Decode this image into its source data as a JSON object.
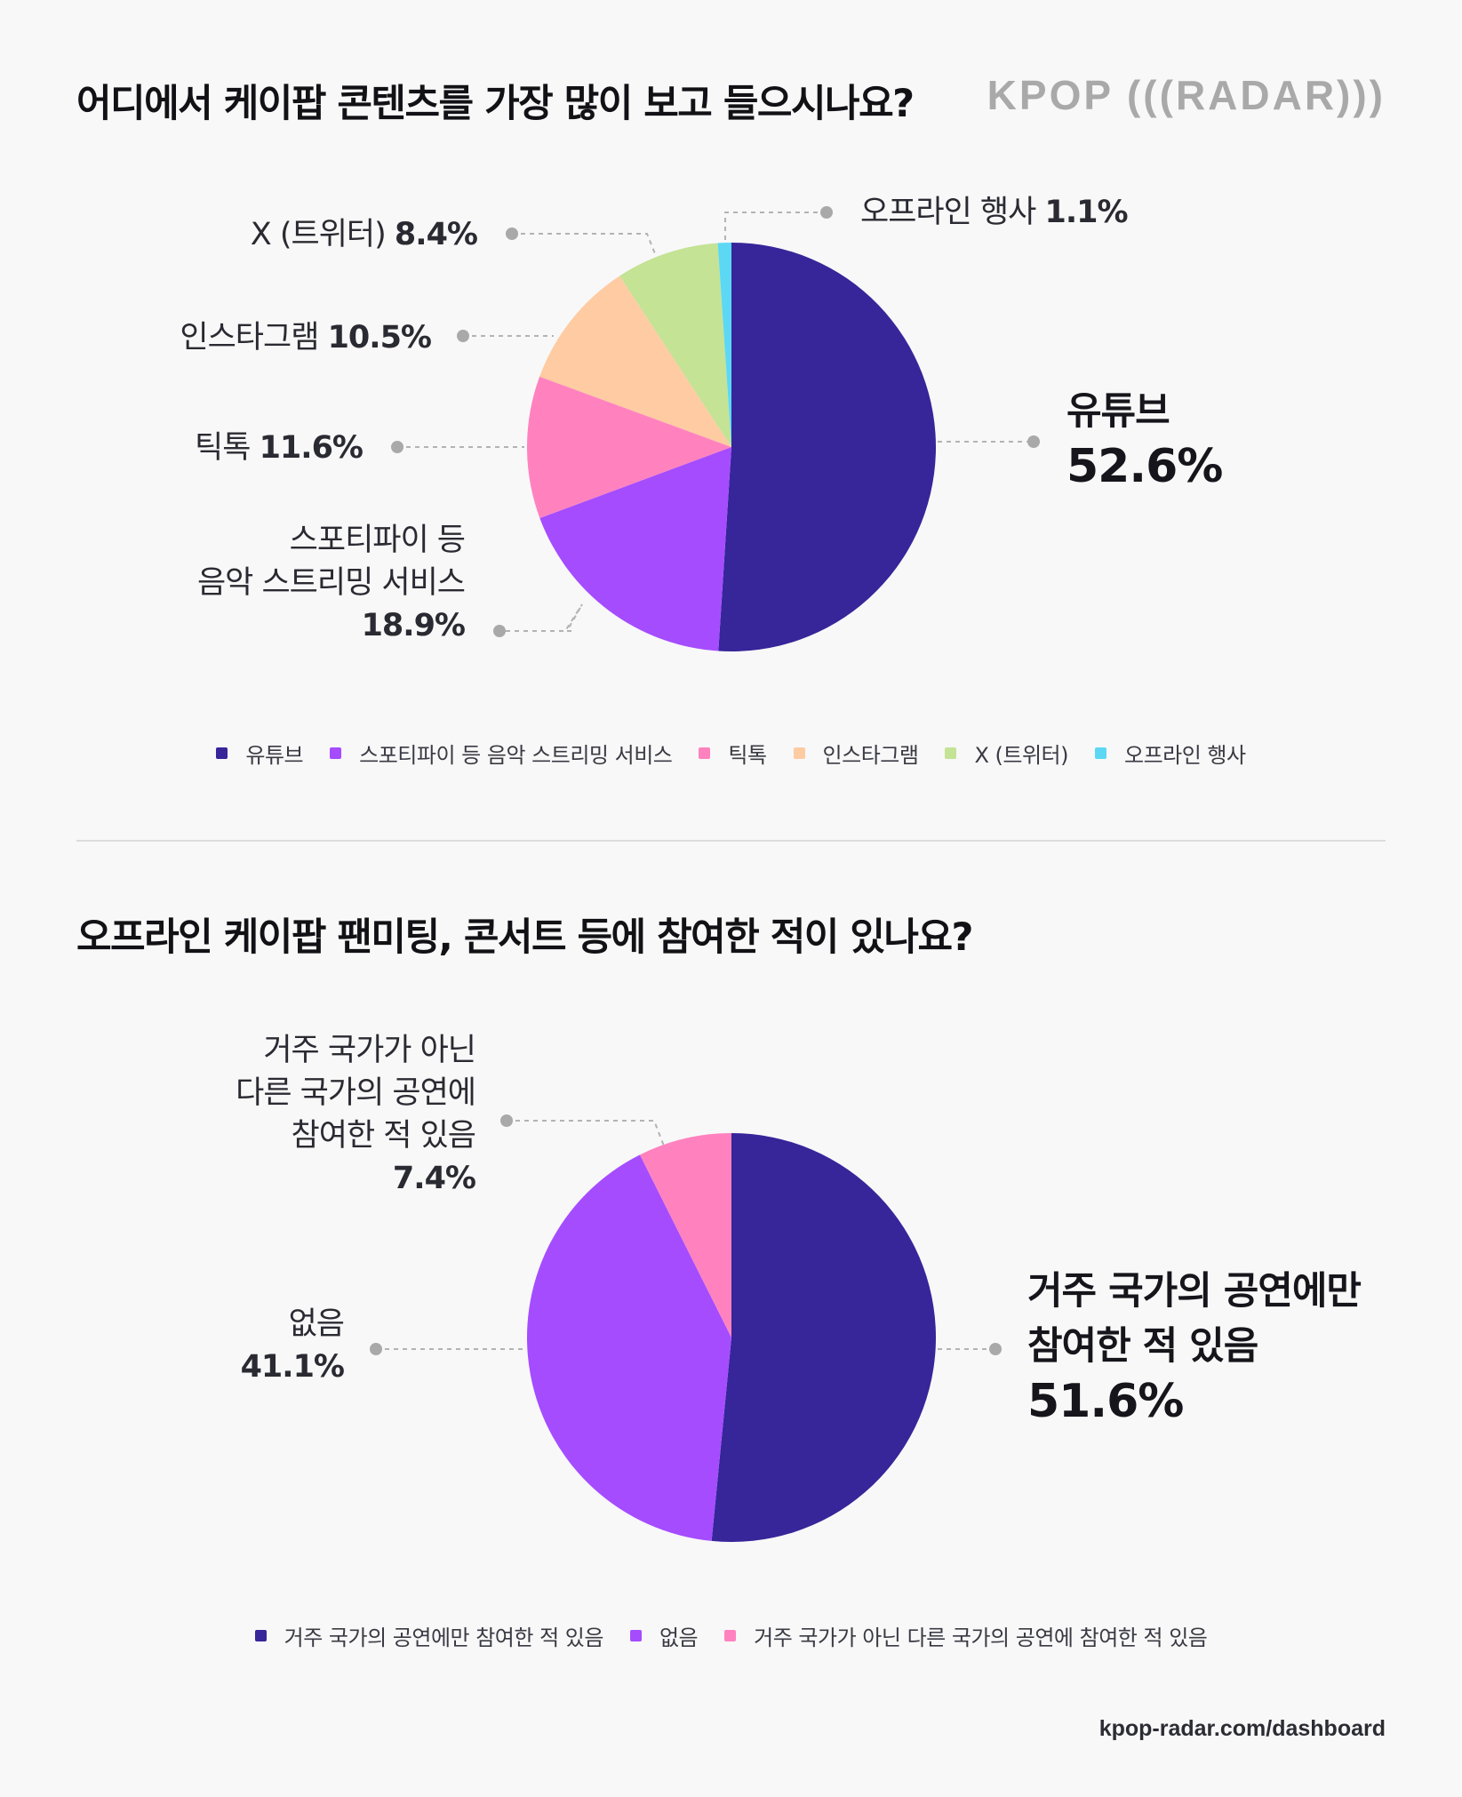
{
  "logo": "KPOP (((RADAR)))",
  "footer": "kpop-radar.com/dashboard",
  "colors": {
    "background": "#f8f8f8",
    "youtube": "#37259a",
    "streaming": "#a54cff",
    "tiktok": "#ff82bf",
    "instagram": "#ffcba2",
    "x": "#c4e395",
    "offline": "#5cd8f5"
  },
  "chart_data": [
    {
      "type": "pie",
      "title": "어디에서 케이팝 콘텐츠를 가장 많이 보고 들으시나요?",
      "slices": [
        {
          "label": "유튜브",
          "value": 52.6,
          "value_label": "52.6%",
          "color": "#37259a"
        },
        {
          "label": "스포티파이 등 음악 스트리밍 서비스",
          "value": 18.9,
          "value_label": "18.9%",
          "color": "#a54cff"
        },
        {
          "label": "틱톡",
          "value": 11.6,
          "value_label": "11.6%",
          "color": "#ff82bf"
        },
        {
          "label": "인스타그램",
          "value": 10.5,
          "value_label": "10.5%",
          "color": "#ffcba2"
        },
        {
          "label": "X (트위터)",
          "value": 8.4,
          "value_label": "8.4%",
          "color": "#c4e395"
        },
        {
          "label": "오프라인 행사",
          "value": 1.1,
          "value_label": "1.1%",
          "color": "#5cd8f5"
        }
      ],
      "callouts": {
        "youtube": {
          "line1": "유튜브",
          "pct": "52.6%"
        },
        "streaming": {
          "line1": "스포티파이 등",
          "line2": "음악 스트리밍 서비스",
          "pct": "18.9%"
        },
        "tiktok": {
          "line1": "틱톡",
          "pct": "11.6%"
        },
        "instagram": {
          "line1": "인스타그램",
          "pct": "10.5%"
        },
        "x": {
          "line1": "X (트위터)",
          "pct": "8.4%"
        },
        "offline": {
          "line1": "오프라인 행사",
          "pct": "1.1%"
        }
      },
      "legend": [
        "유튜브",
        "스포티파이 등 음악 스트리밍 서비스",
        "틱톡",
        "인스타그램",
        "X (트위터)",
        "오프라인 행사"
      ]
    },
    {
      "type": "pie",
      "title": "오프라인 케이팝 팬미팅, 콘서트 등에 참여한 적이 있나요?",
      "slices": [
        {
          "label": "거주 국가의 공연에만 참여한 적 있음",
          "value": 51.6,
          "value_label": "51.6%",
          "color": "#37259a"
        },
        {
          "label": "없음",
          "value": 41.1,
          "value_label": "41.1%",
          "color": "#a54cff"
        },
        {
          "label": "거주 국가가 아닌 다른 국가의 공연에 참여한 적 있음",
          "value": 7.4,
          "value_label": "7.4%",
          "color": "#ff82bf"
        }
      ],
      "callouts": {
        "domestic": {
          "line1": "거주 국가의 공연에만",
          "line2": "참여한 적 있음",
          "pct": "51.6%"
        },
        "none": {
          "line1": "없음",
          "pct": "41.1%"
        },
        "abroad": {
          "line1": "거주 국가가 아닌",
          "line2": "다른 국가의 공연에",
          "line3": "참여한 적 있음",
          "pct": "7.4%"
        }
      },
      "legend": [
        "거주 국가의 공연에만 참여한 적 있음",
        "없음",
        "거주 국가가 아닌 다른 국가의 공연에 참여한 적 있음"
      ]
    }
  ]
}
